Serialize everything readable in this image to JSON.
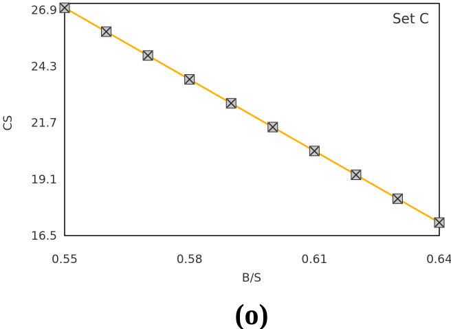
{
  "chart_data": {
    "type": "line",
    "title": "",
    "xlabel": "B/S",
    "ylabel": "CS",
    "annotation": "Set C",
    "caption": "(o)",
    "xlim": [
      0.55,
      0.64
    ],
    "ylim": [
      16.5,
      27.2
    ],
    "x_ticks": [
      "0.55",
      "0.58",
      "0.61",
      "0.64"
    ],
    "y_ticks": [
      "16.5",
      "19.1",
      "21.7",
      "24.3",
      "26.9"
    ],
    "grid": false,
    "marker": "square-x",
    "series": [
      {
        "name": "Set C",
        "x": [
          0.55,
          0.56,
          0.57,
          0.58,
          0.59,
          0.6,
          0.61,
          0.62,
          0.63,
          0.64
        ],
        "y": [
          27.0,
          25.9,
          24.8,
          23.7,
          22.6,
          21.5,
          20.4,
          19.3,
          18.2,
          17.1
        ]
      }
    ],
    "colors": {
      "line": "#FFB000",
      "marker_fill": "#c7c7c7",
      "marker_stroke": "#2a2a2a",
      "frame": "#000000"
    }
  }
}
